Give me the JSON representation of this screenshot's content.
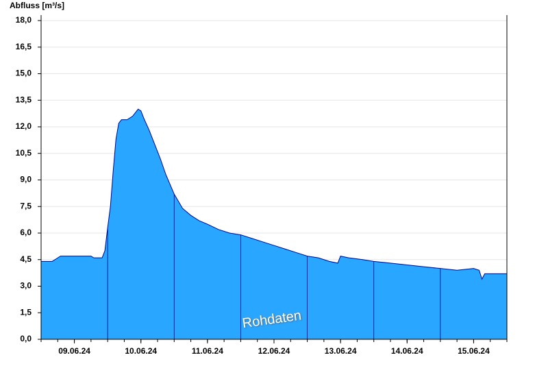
{
  "chart_data": {
    "type": "area",
    "y_label": "Abfluss [m³/s]",
    "annotation": "Rohdaten",
    "x": [
      0,
      4,
      5,
      7,
      12,
      18,
      19,
      22,
      23,
      24,
      25,
      26,
      27,
      28,
      29,
      31,
      33,
      35,
      36,
      37,
      39,
      41,
      43,
      45,
      48,
      51,
      54,
      57,
      60,
      64,
      68,
      72,
      76,
      80,
      84,
      88,
      92,
      96,
      100,
      104,
      107,
      108,
      111,
      116,
      120,
      126,
      132,
      138,
      144,
      150,
      156,
      158,
      159,
      160,
      168
    ],
    "values": [
      4.4,
      4.4,
      4.5,
      4.7,
      4.7,
      4.7,
      4.6,
      4.6,
      5.0,
      6.3,
      7.5,
      9.5,
      11.3,
      12.2,
      12.4,
      12.4,
      12.6,
      13.0,
      12.9,
      12.5,
      11.8,
      11.0,
      10.2,
      9.3,
      8.2,
      7.4,
      7.0,
      6.7,
      6.5,
      6.2,
      6.0,
      5.9,
      5.7,
      5.5,
      5.3,
      5.1,
      4.9,
      4.7,
      4.6,
      4.4,
      4.3,
      4.7,
      4.6,
      4.5,
      4.4,
      4.3,
      4.2,
      4.1,
      4.0,
      3.9,
      4.0,
      3.9,
      3.4,
      3.7,
      3.7
    ],
    "color": "#29a6ff",
    "line_color": "#00008b",
    "xlim": [
      0,
      168
    ],
    "xticks": [
      {
        "value": 12,
        "label": "09.06.24"
      },
      {
        "value": 36,
        "label": "10.06.24"
      },
      {
        "value": 60,
        "label": "11.06.24"
      },
      {
        "value": 84,
        "label": "12.06.24"
      },
      {
        "value": 108,
        "label": "13.06.24"
      },
      {
        "value": 132,
        "label": "14.06.24"
      },
      {
        "value": 156,
        "label": "15.06.24"
      }
    ],
    "ylim": [
      0,
      18
    ],
    "yticks": [
      {
        "value": 0,
        "label": "0,0"
      },
      {
        "value": 1.5,
        "label": "1,5"
      },
      {
        "value": 3,
        "label": "3,0"
      },
      {
        "value": 4.5,
        "label": "4,5"
      },
      {
        "value": 6,
        "label": "6,0"
      },
      {
        "value": 7.5,
        "label": "7,5"
      },
      {
        "value": 9,
        "label": "9,0"
      },
      {
        "value": 10.5,
        "label": "10,5"
      },
      {
        "value": 12,
        "label": "12,0"
      },
      {
        "value": 13.5,
        "label": "13,5"
      },
      {
        "value": 15,
        "label": "15,0"
      },
      {
        "value": 16.5,
        "label": "16,5"
      },
      {
        "value": 18,
        "label": "18,0"
      }
    ],
    "grid": true
  }
}
